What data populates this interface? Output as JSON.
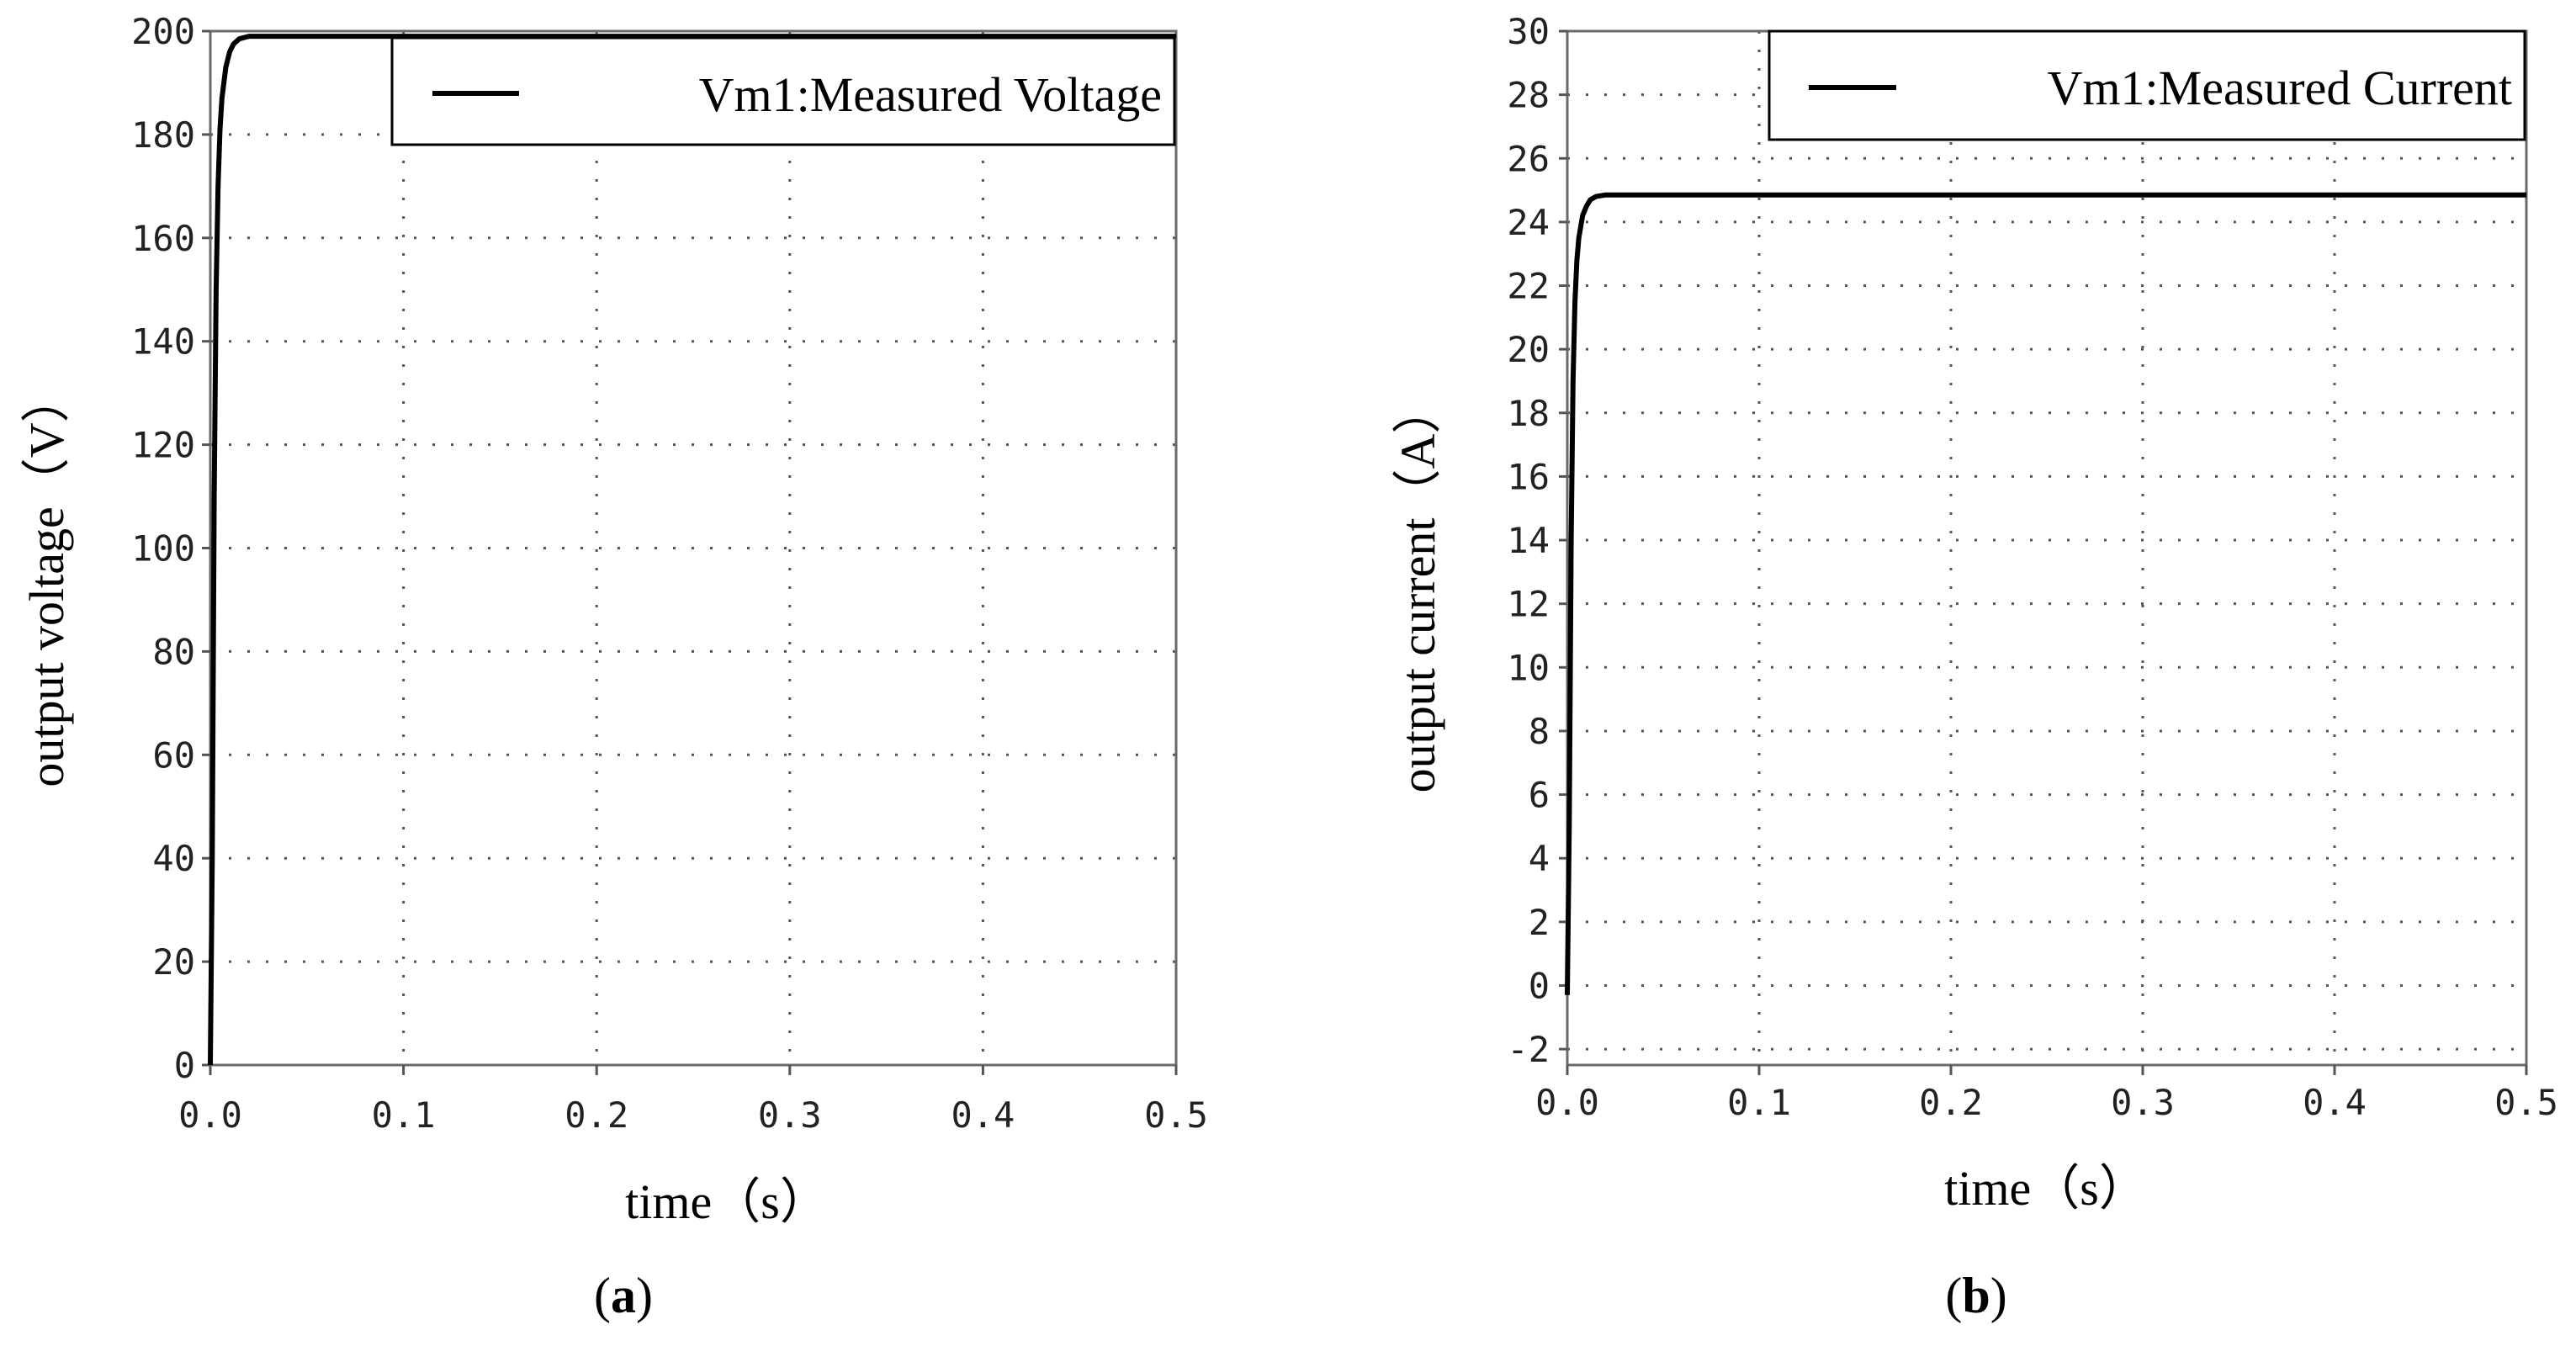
{
  "chart_data": [
    {
      "type": "line",
      "panel_label": "a",
      "xlabel": "time（s）",
      "ylabel": "output voltage（V）",
      "xlim": [
        0,
        0.5
      ],
      "ylim": [
        0,
        200
      ],
      "xticks": [
        0,
        0.1,
        0.2,
        0.3,
        0.4,
        0.5
      ],
      "xtick_labels": [
        "0.0",
        "0.1",
        "0.2",
        "0.3",
        "0.4",
        "0.5"
      ],
      "yticks": [
        0,
        20,
        40,
        60,
        80,
        100,
        120,
        140,
        160,
        180,
        200
      ],
      "ytick_labels": [
        "0",
        "20",
        "40",
        "60",
        "80",
        "100",
        "120",
        "140",
        "160",
        "180",
        "200"
      ],
      "grid": true,
      "legend_position": "top-right",
      "series": [
        {
          "name": "Vm1:Measured Voltage",
          "color": "#000000",
          "x": [
            0,
            0.001,
            0.002,
            0.003,
            0.004,
            0.005,
            0.006,
            0.008,
            0.01,
            0.012,
            0.015,
            0.02,
            0.05,
            0.1,
            0.2,
            0.3,
            0.4,
            0.5
          ],
          "y": [
            0,
            40,
            110,
            150,
            170,
            181,
            187,
            193,
            196,
            197.5,
            198.5,
            199,
            199,
            199,
            199,
            199,
            199,
            199
          ]
        }
      ]
    },
    {
      "type": "line",
      "panel_label": "b",
      "xlabel": "time（s）",
      "ylabel": "output current（A）",
      "xlim": [
        0,
        0.5
      ],
      "ylim": [
        -2.5,
        30
      ],
      "xticks": [
        0,
        0.1,
        0.2,
        0.3,
        0.4,
        0.5
      ],
      "xtick_labels": [
        "0.0",
        "0.1",
        "0.2",
        "0.3",
        "0.4",
        "0.5"
      ],
      "yticks": [
        -2,
        0,
        2,
        4,
        6,
        8,
        10,
        12,
        14,
        16,
        18,
        20,
        22,
        24,
        26,
        28,
        30
      ],
      "ytick_labels": [
        "-2",
        "0",
        "2",
        "4",
        "6",
        "8",
        "10",
        "12",
        "14",
        "16",
        "18",
        "20",
        "22",
        "24",
        "26",
        "28",
        "30"
      ],
      "grid": true,
      "legend_position": "top-right",
      "series": [
        {
          "name": "Vm1:Measured Current",
          "color": "#000000",
          "x": [
            0,
            0.001,
            0.002,
            0.003,
            0.004,
            0.005,
            0.006,
            0.008,
            0.01,
            0.012,
            0.015,
            0.02,
            0.05,
            0.1,
            0.2,
            0.3,
            0.4,
            0.5
          ],
          "y": [
            -0.3,
            5,
            14,
            19,
            21.5,
            22.8,
            23.5,
            24.2,
            24.5,
            24.7,
            24.8,
            24.85,
            24.85,
            24.85,
            24.85,
            24.85,
            24.85,
            24.85
          ]
        }
      ]
    }
  ]
}
